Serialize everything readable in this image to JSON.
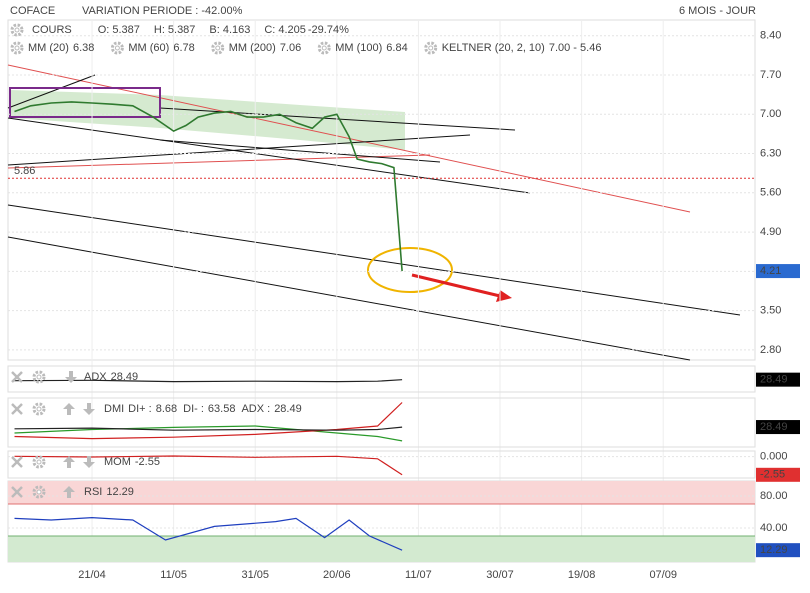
{
  "chart_data": [
    {
      "type": "line",
      "title": "COFACE",
      "subtitle": "VARIATION PERIODE : -42.00%",
      "period": "6 MOIS - JOUR",
      "ohlc": [
        {
          "label": "O:",
          "value": 5.387
        },
        {
          "label": "H:",
          "value": 5.387
        },
        {
          "label": "B:",
          "value": 4.163
        },
        {
          "label": "C:",
          "value": 4.205
        }
      ],
      "change_label": "-29.74%",
      "indicators": [
        {
          "name": "MM (20)",
          "value": 6.38,
          "color": "#d02020"
        },
        {
          "name": "MM (60)",
          "value": 6.78,
          "color": "#f0a030"
        },
        {
          "name": "MM (200)",
          "value": 7.06,
          "color": "#2a8a2a"
        },
        {
          "name": "MM (100)",
          "value": 6.84,
          "color": "#40b8d8"
        },
        {
          "name": "KELTNER (20, 2, 10)",
          "value": "7.00 - 5.46",
          "color": "#2a8a2a"
        }
      ],
      "ref_line": {
        "value": 5.86,
        "label": "5.86",
        "color": "#e03030"
      },
      "last_label": "4.21",
      "marker_color": "#2a6ad0",
      "x": [
        -19,
        -15,
        -10,
        -5,
        0,
        5,
        10,
        15,
        18,
        20,
        23,
        26,
        30,
        34,
        38,
        42,
        46,
        50,
        54,
        57,
        60,
        63,
        65,
        68,
        71,
        74,
        76
      ],
      "series": [
        {
          "name": "COURS",
          "color": "#2f7a2f",
          "values": [
            7.05,
            7.15,
            7.2,
            7.22,
            7.2,
            7.18,
            7.15,
            6.95,
            6.8,
            6.7,
            6.8,
            6.95,
            7.02,
            7.05,
            6.95,
            6.95,
            7.0,
            6.85,
            6.75,
            6.95,
            7.0,
            6.6,
            6.2,
            6.15,
            6.12,
            6.05,
            4.205
          ]
        }
      ],
      "xlim": [
        -20.6,
        162.5
      ],
      "xticks": [
        {
          "value": 0,
          "label": "21/04"
        },
        {
          "value": 20,
          "label": "11/05"
        },
        {
          "value": 40,
          "label": "31/05"
        },
        {
          "value": 60,
          "label": "20/06"
        },
        {
          "value": 80,
          "label": "11/07"
        },
        {
          "value": 100,
          "label": "30/07"
        },
        {
          "value": 120,
          "label": "19/08"
        },
        {
          "value": 140,
          "label": "07/09"
        }
      ],
      "ylim": [
        2.62,
        8.68
      ],
      "yticks": [
        {
          "value": 8.4,
          "label": "8.40"
        },
        {
          "value": 7.7,
          "label": "7.70"
        },
        {
          "value": 7.0,
          "label": "7.00"
        },
        {
          "value": 6.3,
          "label": "6.30"
        },
        {
          "value": 5.6,
          "label": "5.60"
        },
        {
          "value": 4.9,
          "label": "4.90"
        },
        {
          "value": 4.2,
          "label": "4.20"
        },
        {
          "value": 3.5,
          "label": "3.50"
        },
        {
          "value": 2.8,
          "label": "2.80"
        }
      ],
      "grid": true
    },
    {
      "type": "line",
      "x": [
        -19,
        0,
        20,
        40,
        60,
        70,
        76
      ],
      "xlim": [
        -20.6,
        162.5
      ],
      "ylim": [
        0,
        60
      ],
      "yticks": [],
      "marker_color": "#000000",
      "series": [
        {
          "name": "ADX",
          "color": "#222222",
          "values": [
            26,
            27,
            24,
            25,
            24,
            25,
            28.49
          ]
        }
      ]
    },
    {
      "type": "line",
      "title": "DMI",
      "x": [
        -19,
        0,
        20,
        40,
        60,
        70,
        76
      ],
      "xlim": [
        -20.6,
        162.5
      ],
      "ylim": [
        0,
        70
      ],
      "yticks": [],
      "marker_color": "#000000",
      "series": [
        {
          "name": "DI+ :",
          "color": "#2a9a2a",
          "values": [
            20,
            25,
            28,
            30,
            20,
            15,
            8.68
          ]
        },
        {
          "name": "DI- :",
          "color": "#d02020",
          "values": [
            15,
            12,
            14,
            18,
            25,
            30,
            63.58
          ]
        },
        {
          "name": "ADX :",
          "color": "#222222",
          "values": [
            26,
            27,
            24,
            25,
            24,
            25,
            28.49
          ]
        }
      ]
    },
    {
      "type": "line",
      "x": [
        -19,
        0,
        20,
        40,
        60,
        70,
        76
      ],
      "xlim": [
        -20.6,
        162.5
      ],
      "ylim": [
        -3,
        0.8
      ],
      "yticks": [
        {
          "value": 0,
          "label": "0.000"
        }
      ],
      "marker_color": "#e03030",
      "series": [
        {
          "name": "MOM",
          "color": "#d02020",
          "values": [
            0.05,
            -0.05,
            0.1,
            -0.08,
            0.05,
            -0.3,
            -2.55
          ]
        }
      ]
    },
    {
      "type": "line",
      "x": [
        -19,
        -10,
        0,
        10,
        18,
        30,
        45,
        50,
        57,
        63,
        68,
        76
      ],
      "xlim": [
        -20.6,
        162.5
      ],
      "ylim": [
        -2.5,
        98.75
      ],
      "yticks": [
        {
          "value": 80,
          "label": "80.00"
        },
        {
          "value": 40,
          "label": "40.00"
        }
      ],
      "overbought": 70,
      "oversold": 30,
      "marker_color": "#2050c0",
      "series": [
        {
          "name": "RSI",
          "color": "#1f3fbf",
          "values": [
            52,
            50,
            53,
            50,
            25,
            42,
            48,
            52,
            28,
            50,
            30,
            12.29
          ]
        }
      ]
    }
  ]
}
